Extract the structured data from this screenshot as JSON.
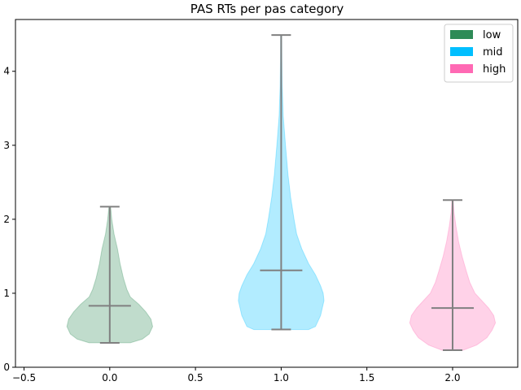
{
  "chart_data": {
    "type": "violin",
    "title": "PAS RTs per pas category",
    "xlabel": "",
    "ylabel": "",
    "xlim": [
      -0.55,
      2.38
    ],
    "ylim": [
      0,
      4.7
    ],
    "xticks": [
      -0.5,
      0.0,
      0.5,
      1.0,
      1.5,
      2.0
    ],
    "xtick_labels": [
      "−0.5",
      "0.0",
      "0.5",
      "1.0",
      "1.5",
      "2.0"
    ],
    "yticks": [
      0,
      1,
      2,
      3,
      4
    ],
    "ytick_labels": [
      "0",
      "1",
      "2",
      "3",
      "4"
    ],
    "grid": false,
    "legend_position": "top-right",
    "legend": [
      {
        "label": "low",
        "color": "#2e8b57"
      },
      {
        "label": "mid",
        "color": "#00bfff"
      },
      {
        "label": "high",
        "color": "#ff69b4"
      }
    ],
    "series": [
      {
        "position": 0.0,
        "min": 0.33,
        "max": 2.17,
        "mean": 0.83,
        "fill": "#2e8b57",
        "profile": [
          [
            0.33,
            0.12
          ],
          [
            0.38,
            0.19
          ],
          [
            0.45,
            0.23
          ],
          [
            0.55,
            0.25
          ],
          [
            0.65,
            0.24
          ],
          [
            0.75,
            0.21
          ],
          [
            0.85,
            0.17
          ],
          [
            0.95,
            0.12
          ],
          [
            1.05,
            0.1
          ],
          [
            1.2,
            0.08
          ],
          [
            1.4,
            0.06
          ],
          [
            1.6,
            0.045
          ],
          [
            1.8,
            0.025
          ],
          [
            2.0,
            0.012
          ],
          [
            2.17,
            0.005
          ]
        ]
      },
      {
        "position": 1.0,
        "min": 0.51,
        "max": 4.49,
        "mean": 1.31,
        "fill": "#00bfff",
        "profile": [
          [
            0.51,
            0.16
          ],
          [
            0.55,
            0.2
          ],
          [
            0.7,
            0.23
          ],
          [
            0.9,
            0.25
          ],
          [
            1.0,
            0.245
          ],
          [
            1.1,
            0.23
          ],
          [
            1.25,
            0.2
          ],
          [
            1.4,
            0.16
          ],
          [
            1.6,
            0.12
          ],
          [
            1.8,
            0.09
          ],
          [
            2.0,
            0.075
          ],
          [
            2.3,
            0.055
          ],
          [
            2.6,
            0.04
          ],
          [
            3.0,
            0.025
          ],
          [
            3.4,
            0.012
          ],
          [
            3.8,
            0.006
          ],
          [
            4.2,
            0.004
          ],
          [
            4.49,
            0.003
          ]
        ]
      },
      {
        "position": 2.0,
        "min": 0.23,
        "max": 2.26,
        "mean": 0.8,
        "fill": "#ff69b4",
        "profile": [
          [
            0.23,
            0.06
          ],
          [
            0.3,
            0.14
          ],
          [
            0.4,
            0.2
          ],
          [
            0.5,
            0.23
          ],
          [
            0.6,
            0.25
          ],
          [
            0.7,
            0.24
          ],
          [
            0.8,
            0.21
          ],
          [
            0.9,
            0.17
          ],
          [
            1.0,
            0.13
          ],
          [
            1.15,
            0.1
          ],
          [
            1.3,
            0.08
          ],
          [
            1.5,
            0.055
          ],
          [
            1.7,
            0.035
          ],
          [
            1.9,
            0.02
          ],
          [
            2.1,
            0.008
          ],
          [
            2.26,
            0.004
          ]
        ]
      }
    ]
  }
}
